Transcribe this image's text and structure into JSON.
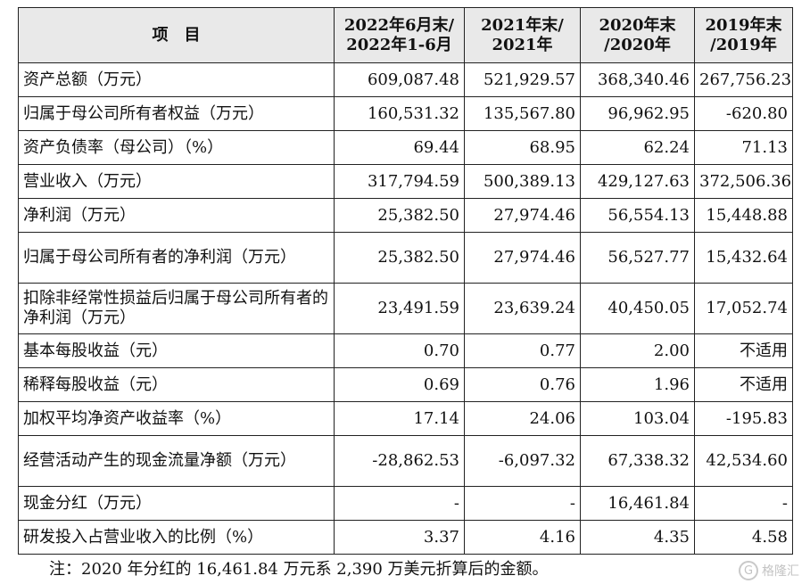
{
  "table": {
    "headers": [
      {
        "line1": "项　目",
        "line2": ""
      },
      {
        "line1": "2022年6月末/",
        "line2": "2022年1-6月"
      },
      {
        "line1": "2021年末/",
        "line2": "2021年"
      },
      {
        "line1": "2020年末",
        "line2": "/2020年"
      },
      {
        "line1": "2019年末",
        "line2": "/2019年"
      }
    ],
    "rows": [
      {
        "label": "资产总额（万元）",
        "values": [
          "609,087.48",
          "521,929.57",
          "368,340.46",
          "267,756.23"
        ]
      },
      {
        "label": "归属于母公司所有者权益（万元）",
        "values": [
          "160,531.32",
          "135,567.80",
          "96,962.95",
          "-620.80"
        ]
      },
      {
        "label": "资产负债率（母公司）（%）",
        "values": [
          "69.44",
          "68.95",
          "62.24",
          "71.13"
        ]
      },
      {
        "label": "营业收入（万元）",
        "values": [
          "317,794.59",
          "500,389.13",
          "429,127.63",
          "372,506.36"
        ]
      },
      {
        "label": "净利润（万元）",
        "values": [
          "25,382.50",
          "27,974.46",
          "56,554.13",
          "15,448.88"
        ]
      },
      {
        "label": "归属于母公司所有者的净利润（万元）",
        "values": [
          "25,382.50",
          "27,974.46",
          "56,527.77",
          "15,432.64"
        ]
      },
      {
        "label": "扣除非经常性损益后归属于母公司所有者的净利润（万元）",
        "values": [
          "23,491.59",
          "23,639.24",
          "40,450.05",
          "17,052.74"
        ]
      },
      {
        "label": "基本每股收益（元）",
        "values": [
          "0.70",
          "0.77",
          "2.00",
          "不适用"
        ]
      },
      {
        "label": "稀释每股收益（元）",
        "values": [
          "0.69",
          "0.76",
          "1.96",
          "不适用"
        ]
      },
      {
        "label": "加权平均净资产收益率（%）",
        "values": [
          "17.14",
          "24.06",
          "103.04",
          "-195.83"
        ]
      },
      {
        "label": "经营活动产生的现金流量净额（万元）",
        "values": [
          "-28,862.53",
          "-6,097.32",
          "67,338.32",
          "42,534.60"
        ]
      },
      {
        "label": "现金分红（万元）",
        "values": [
          "-",
          "-",
          "16,461.84",
          "-"
        ]
      },
      {
        "label": "研发投入占营业收入的比例（%）",
        "values": [
          "3.37",
          "4.16",
          "4.35",
          "4.58"
        ]
      }
    ]
  },
  "note": "注：2020 年分红的 16,461.84 万元系 2,390 万美元折算后的金额。",
  "watermark": {
    "icon": "gelonghui-logo-icon",
    "text": "格隆汇"
  }
}
